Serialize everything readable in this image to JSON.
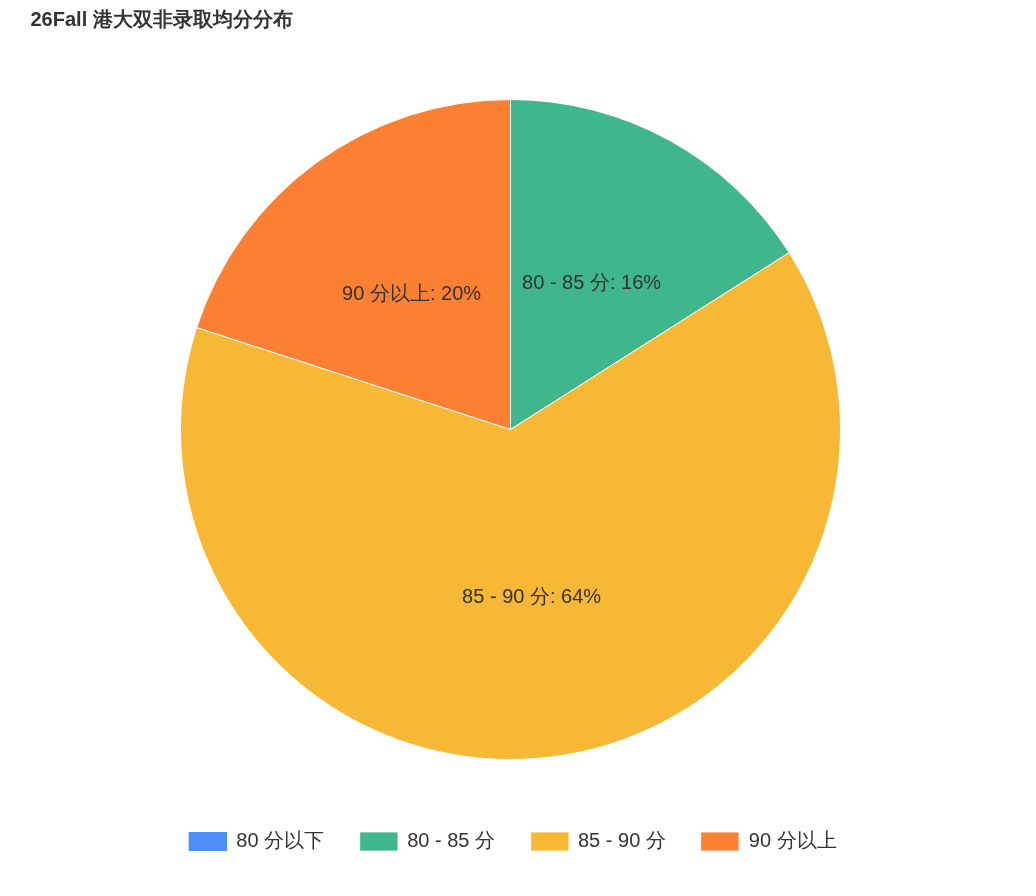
{
  "chart_data": {
    "type": "pie",
    "title": "26Fall 港大双非录取均分分布",
    "categories": [
      "80 分以下",
      "80 - 85 分",
      "85 - 90 分",
      "90 分以上"
    ],
    "values": [
      0,
      16,
      64,
      20
    ],
    "colors": [
      "#4e8ef7",
      "#3fb68b",
      "#f7b836",
      "#fb8034"
    ],
    "value_labels": [
      null,
      "80 - 85 分: 16%",
      "85 - 90 分: 64%",
      "90 分以上: 20%"
    ],
    "legend": "bottom"
  }
}
